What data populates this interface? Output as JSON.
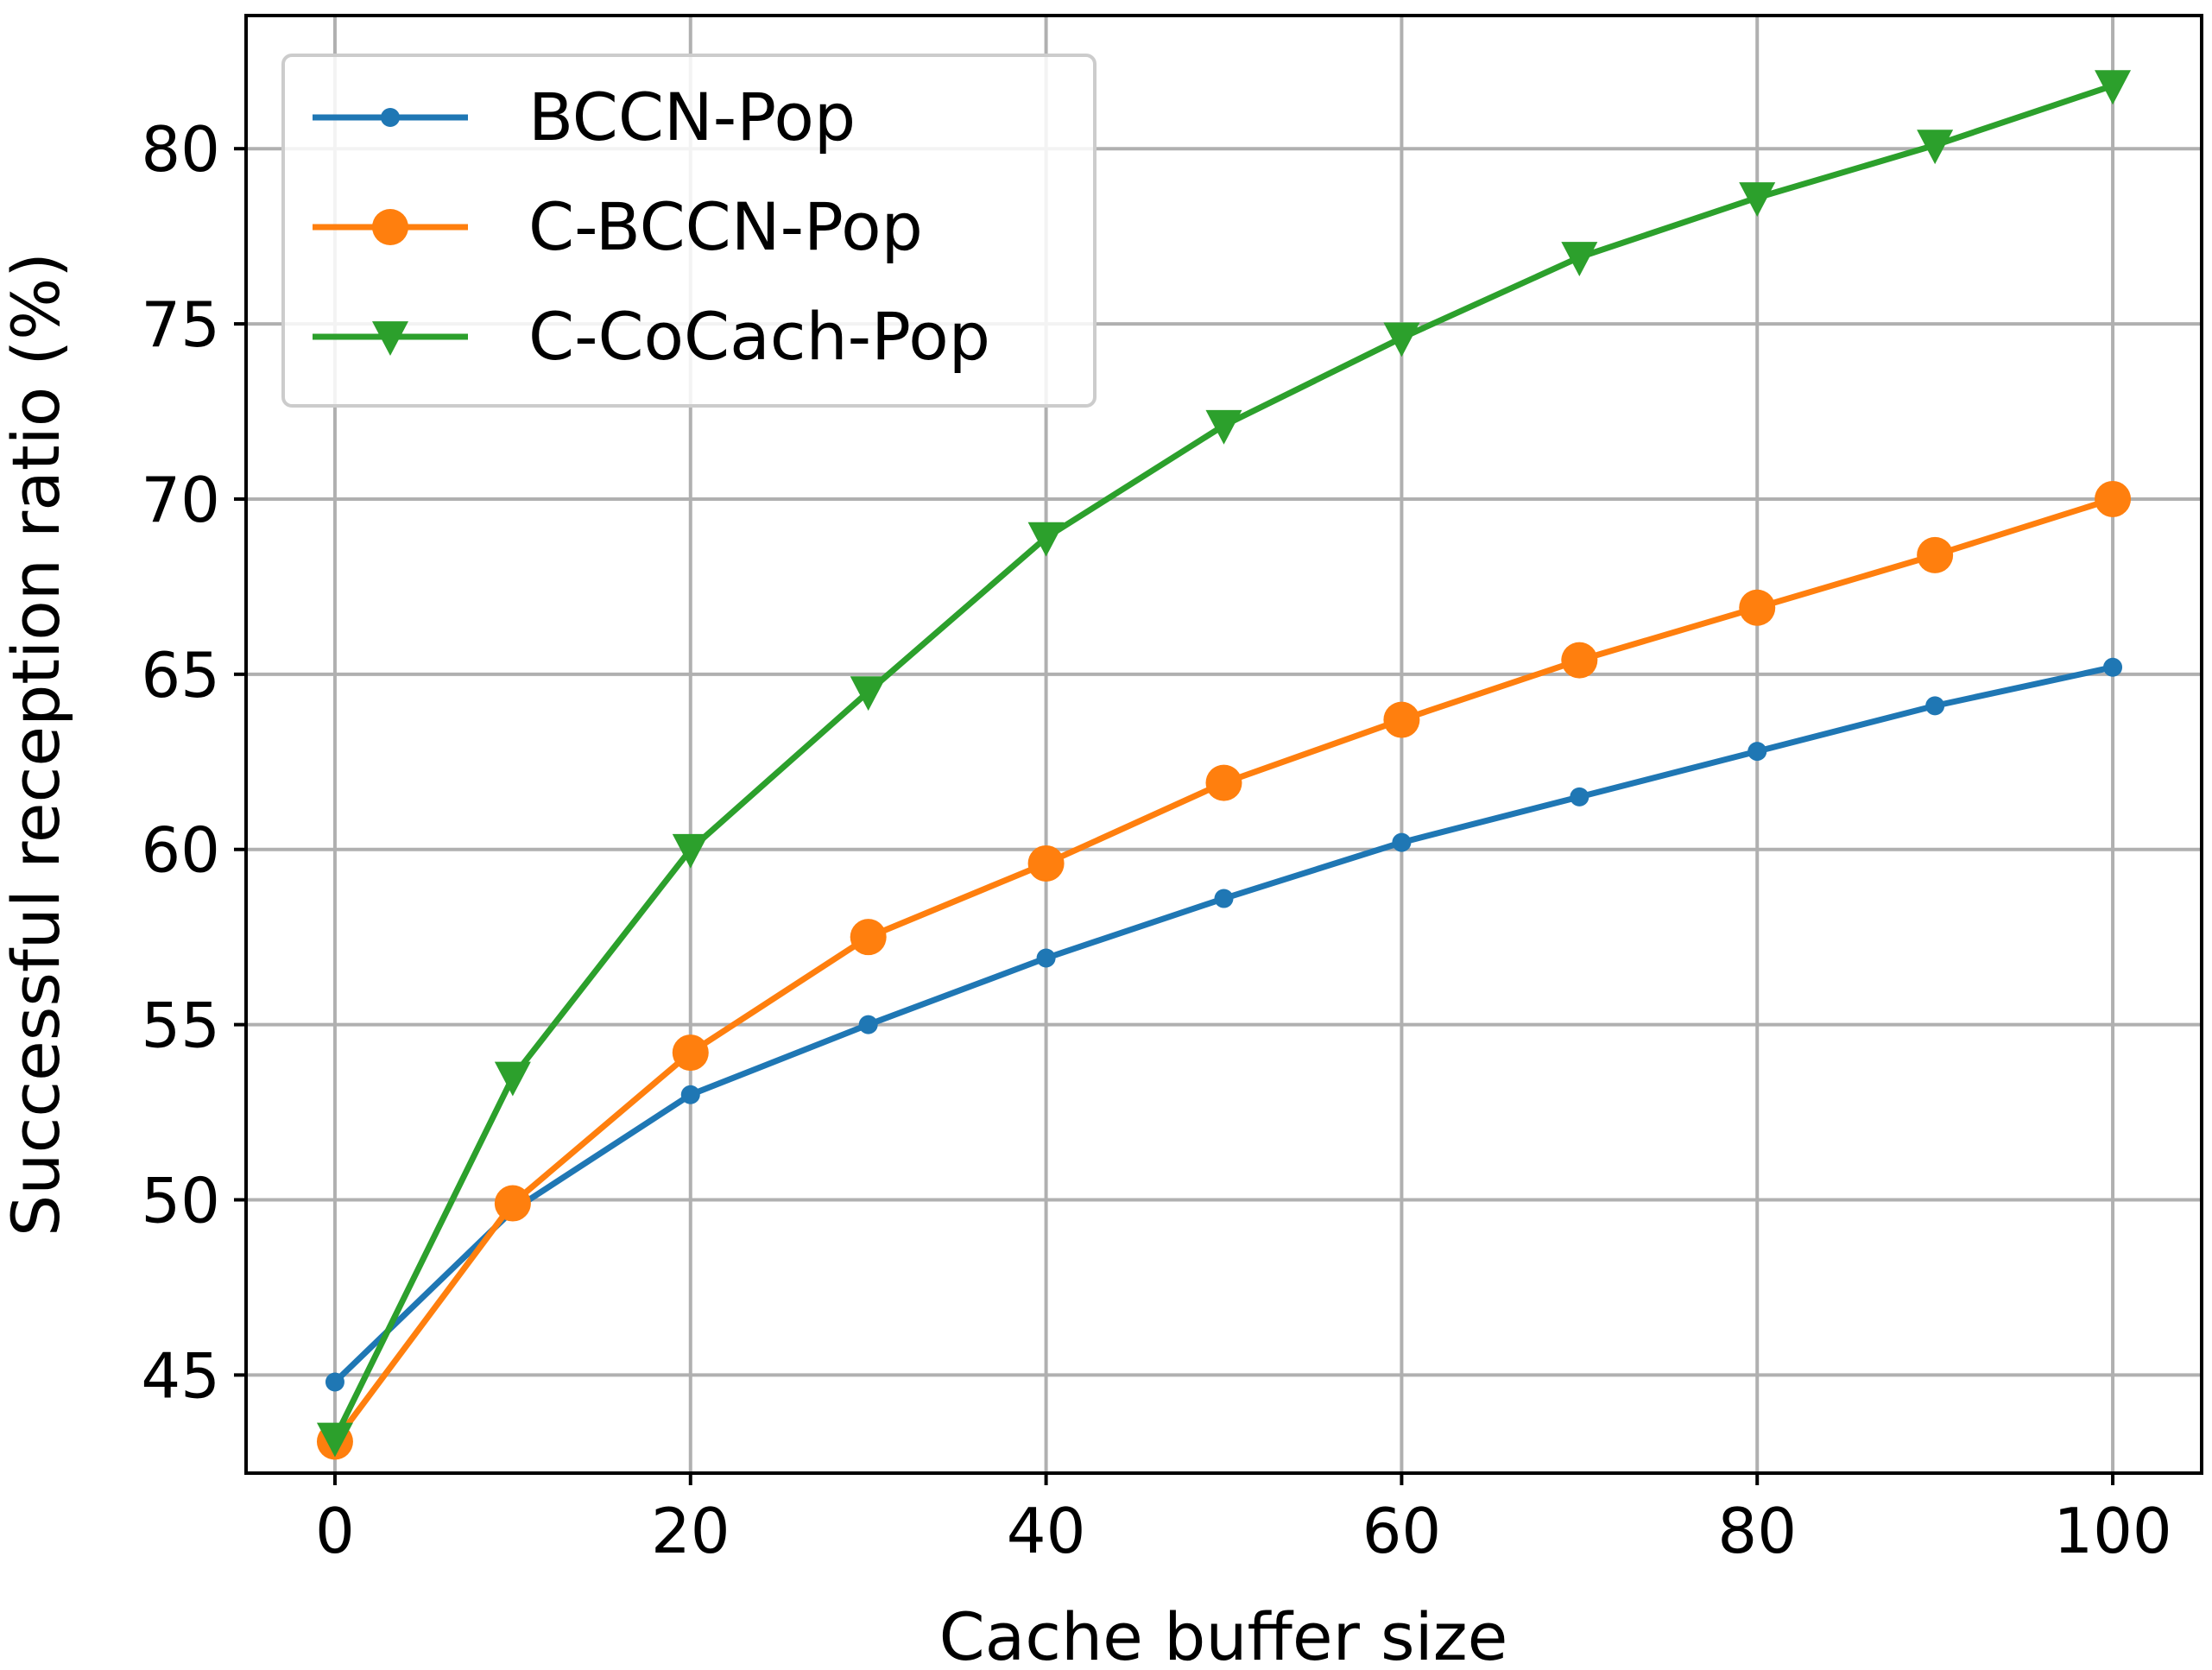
{
  "chart_data": {
    "type": "line",
    "title": "",
    "xlabel": "Cache buffer size",
    "ylabel": "Successful reception ratio (%)",
    "xlim": [
      -5,
      105
    ],
    "ylim": [
      42.2,
      83.8
    ],
    "x_ticks": [
      0,
      20,
      40,
      60,
      80,
      100
    ],
    "y_ticks": [
      45,
      50,
      55,
      60,
      65,
      70,
      75,
      80
    ],
    "x_tick_labels": [
      "0",
      "20",
      "40",
      "60",
      "80",
      "100"
    ],
    "y_tick_labels": [
      "45",
      "50",
      "55",
      "60",
      "65",
      "70",
      "75",
      "80"
    ],
    "grid": true,
    "legend_position": "top-left",
    "x": [
      0,
      10,
      20,
      30,
      40,
      50,
      60,
      70,
      80,
      90,
      100
    ],
    "series": [
      {
        "name": "BCCN-Pop",
        "color": "#1f77b4",
        "marker": "dot",
        "values": [
          44.8,
          49.7,
          53.0,
          55.0,
          56.9,
          58.6,
          60.2,
          61.5,
          62.8,
          64.1,
          65.2
        ]
      },
      {
        "name": "C-BCCN-Pop",
        "color": "#ff7f0e",
        "marker": "circle",
        "values": [
          43.1,
          49.9,
          54.2,
          57.5,
          59.6,
          61.9,
          63.7,
          65.4,
          66.9,
          68.4,
          70.0
        ]
      },
      {
        "name": "C-CoCach-Pop",
        "color": "#2ca02c",
        "marker": "triangle-down",
        "values": [
          43.2,
          53.5,
          60.0,
          64.5,
          68.9,
          72.1,
          74.6,
          76.9,
          78.6,
          80.1,
          81.8
        ]
      }
    ]
  }
}
